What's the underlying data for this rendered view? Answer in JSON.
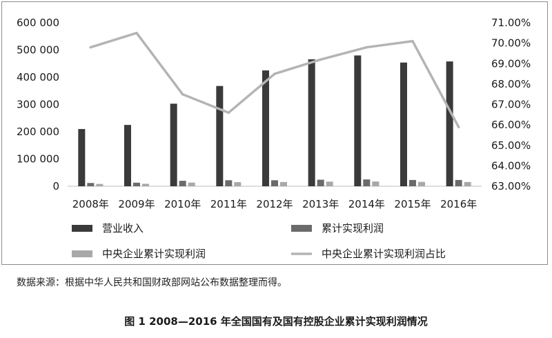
{
  "chart_data": {
    "type": "bar",
    "categories": [
      "2008年",
      "2009年",
      "2010年",
      "2011年",
      "2012年",
      "2013年",
      "2014年",
      "2015年",
      "2016年"
    ],
    "series": [
      {
        "name": "营业收入",
        "kind": "bar",
        "axis": "left",
        "color": "#3a3a3a",
        "values": [
          210000,
          225000,
          303000,
          368000,
          425000,
          466000,
          480000,
          454000,
          458000
        ]
      },
      {
        "name": "累计实现利润",
        "kind": "bar",
        "axis": "left",
        "color": "#6b6b6b",
        "values": [
          12000,
          13000,
          20000,
          22000,
          22000,
          24000,
          25000,
          23000,
          23000
        ]
      },
      {
        "name": "中央企业累计实现利润",
        "kind": "bar",
        "axis": "left",
        "color": "#a8a8a8",
        "values": [
          8500,
          9000,
          13500,
          15000,
          15500,
          17000,
          17500,
          16000,
          15500
        ]
      },
      {
        "name": "中央企业累计实现利润占比",
        "kind": "line",
        "axis": "right",
        "color": "#b4b4b4",
        "values": [
          69.8,
          70.5,
          67.5,
          66.6,
          68.5,
          69.2,
          69.8,
          70.1,
          65.9
        ]
      }
    ],
    "y_left": {
      "min": 0,
      "max": 600000,
      "ticks": [
        0,
        100000,
        200000,
        300000,
        400000,
        500000,
        600000
      ],
      "tick_labels": [
        "0",
        "100 000",
        "200 000",
        "300 000",
        "400 000",
        "500 000",
        "600 000"
      ]
    },
    "y_right": {
      "min": 63,
      "max": 71,
      "ticks": [
        63,
        64,
        65,
        66,
        67,
        68,
        69,
        70,
        71
      ],
      "tick_labels": [
        "63.00%",
        "64.00%",
        "65.00%",
        "66.00%",
        "67.00%",
        "68.00%",
        "69.00%",
        "70.00%",
        "71.00%"
      ]
    },
    "grid": false,
    "legend_position": "bottom"
  },
  "source_note": "数据来源：根据中华人民共和国财政部网站公布数据整理而得。",
  "figure_caption": "图 1   2008—2016 年全国国有及国有控股企业累计实现利润情况"
}
